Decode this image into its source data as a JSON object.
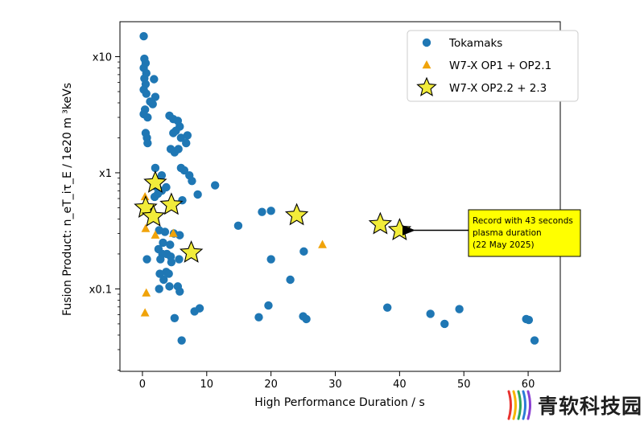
{
  "chart_data": {
    "type": "scatter",
    "xlabel": "High Performance Duration / s",
    "ylabel": "Fusion Product:  n_eT_iτ_E /  1e20 m ³keVs",
    "x_ticks": [
      0,
      10,
      20,
      30,
      40,
      50,
      60
    ],
    "y_ticks": [
      {
        "value": 0.1,
        "label": "x0.1"
      },
      {
        "value": 1,
        "label": "x1"
      },
      {
        "value": 10,
        "label": "x10"
      }
    ],
    "xlim": [
      -3.5,
      65
    ],
    "ylim": [
      0.0195,
      20
    ],
    "yscale": "log",
    "grid": false,
    "legend_position": "top-right",
    "series": [
      {
        "name": "Tokamaks",
        "marker": "circle",
        "color": "#1f77b4",
        "points": [
          [
            0.2,
            15.0
          ],
          [
            0.3,
            9.6
          ],
          [
            0.5,
            8.8
          ],
          [
            0.2,
            8.0
          ],
          [
            0.6,
            7.2
          ],
          [
            0.3,
            6.5
          ],
          [
            0.5,
            5.8
          ],
          [
            1.8,
            6.4
          ],
          [
            0.2,
            5.2
          ],
          [
            0.6,
            4.8
          ],
          [
            2.0,
            4.5
          ],
          [
            1.2,
            4.1
          ],
          [
            1.6,
            3.9
          ],
          [
            0.4,
            3.5
          ],
          [
            0.2,
            3.2
          ],
          [
            0.8,
            3.0
          ],
          [
            4.2,
            3.1
          ],
          [
            4.8,
            2.9
          ],
          [
            5.5,
            2.8
          ],
          [
            5.8,
            2.5
          ],
          [
            5.2,
            2.3
          ],
          [
            4.8,
            2.2
          ],
          [
            6.0,
            2.0
          ],
          [
            7.0,
            2.1
          ],
          [
            6.8,
            1.8
          ],
          [
            0.5,
            2.2
          ],
          [
            0.7,
            2.0
          ],
          [
            0.8,
            1.8
          ],
          [
            4.4,
            1.6
          ],
          [
            5.0,
            1.5
          ],
          [
            5.6,
            1.6
          ],
          [
            2.0,
            1.1
          ],
          [
            3.0,
            0.95
          ],
          [
            6.0,
            1.1
          ],
          [
            6.5,
            1.05
          ],
          [
            7.3,
            0.95
          ],
          [
            7.7,
            0.85
          ],
          [
            11.3,
            0.78
          ],
          [
            2.1,
            0.76
          ],
          [
            3.0,
            0.7
          ],
          [
            2.4,
            0.66
          ],
          [
            8.6,
            0.65
          ],
          [
            1.9,
            0.62
          ],
          [
            3.7,
            0.75
          ],
          [
            6.2,
            0.58
          ],
          [
            14.9,
            0.35
          ],
          [
            18.6,
            0.46
          ],
          [
            20.0,
            0.47
          ],
          [
            25.1,
            0.21
          ],
          [
            20.0,
            0.18
          ],
          [
            23.0,
            0.12
          ],
          [
            2.6,
            0.32
          ],
          [
            3.5,
            0.31
          ],
          [
            4.9,
            0.3
          ],
          [
            5.8,
            0.29
          ],
          [
            3.2,
            0.25
          ],
          [
            4.3,
            0.24
          ],
          [
            2.5,
            0.22
          ],
          [
            3.1,
            0.2
          ],
          [
            3.8,
            0.2
          ],
          [
            4.4,
            0.19
          ],
          [
            2.8,
            0.18
          ],
          [
            4.5,
            0.17
          ],
          [
            5.7,
            0.18
          ],
          [
            0.7,
            0.18
          ],
          [
            3.7,
            0.14
          ],
          [
            4.1,
            0.135
          ],
          [
            3.3,
            0.12
          ],
          [
            2.7,
            0.135
          ],
          [
            4.2,
            0.105
          ],
          [
            5.5,
            0.105
          ],
          [
            2.6,
            0.1
          ],
          [
            5.8,
            0.095
          ],
          [
            8.9,
            0.068
          ],
          [
            8.1,
            0.064
          ],
          [
            19.6,
            0.072
          ],
          [
            18.1,
            0.057
          ],
          [
            25.0,
            0.058
          ],
          [
            25.5,
            0.055
          ],
          [
            38.1,
            0.069
          ],
          [
            44.8,
            0.061
          ],
          [
            49.3,
            0.067
          ],
          [
            47.0,
            0.05
          ],
          [
            59.7,
            0.055
          ],
          [
            60.1,
            0.054
          ],
          [
            61.0,
            0.036
          ],
          [
            5.0,
            0.056
          ],
          [
            6.1,
            0.036
          ]
        ]
      },
      {
        "name": "W7-X OP1 + OP2.1",
        "marker": "triangle",
        "color": "#f0a30a",
        "points": [
          [
            0.4,
            0.62
          ],
          [
            2.0,
            0.29
          ],
          [
            0.5,
            0.33
          ],
          [
            4.8,
            0.3
          ],
          [
            28.0,
            0.24
          ],
          [
            0.6,
            0.092
          ],
          [
            0.4,
            0.062
          ]
        ]
      },
      {
        "name": "W7-X OP2.2 + 2.3",
        "marker": "star",
        "color": "#f2ec3a",
        "points": [
          [
            2.0,
            0.82
          ],
          [
            0.5,
            0.5
          ],
          [
            4.5,
            0.53
          ],
          [
            1.7,
            0.42
          ],
          [
            7.6,
            0.205
          ],
          [
            24.0,
            0.43
          ],
          [
            37.0,
            0.36
          ],
          [
            40.0,
            0.32
          ]
        ]
      }
    ],
    "annotation": {
      "lines": [
        "Record with 43 seconds",
        "plasma duration",
        "(22 May 2025)"
      ],
      "points_to": [
        40.0,
        0.32
      ],
      "box_color": "#ffff00"
    }
  },
  "watermark": {
    "text": "青软科技园",
    "colors": [
      "#e8322f",
      "#f7b500",
      "#2aa65a",
      "#2b7bd8",
      "#8a3fd1"
    ]
  }
}
